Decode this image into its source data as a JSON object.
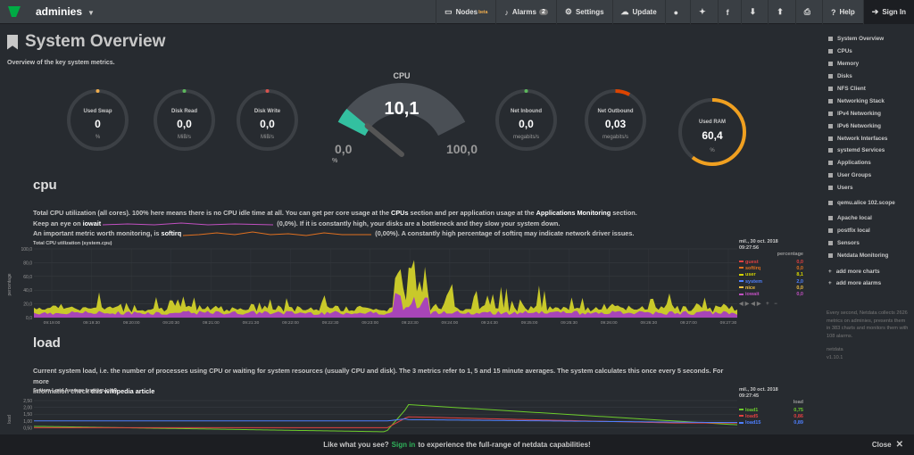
{
  "topbar": {
    "brand": "adminies",
    "nav": [
      {
        "icon": "monitor-icon",
        "label": "Nodes",
        "beta": "beta"
      },
      {
        "icon": "bell-icon",
        "label": "Alarms",
        "badge": "2"
      },
      {
        "icon": "gear-icon",
        "label": "Settings"
      },
      {
        "icon": "cloud-icon",
        "label": "Update"
      },
      {
        "icon": "github-icon",
        "label": ""
      },
      {
        "icon": "twitter-icon",
        "label": ""
      },
      {
        "icon": "facebook-icon",
        "label": ""
      },
      {
        "icon": "download-icon",
        "label": ""
      },
      {
        "icon": "upload-icon",
        "label": ""
      },
      {
        "icon": "print-icon",
        "label": ""
      },
      {
        "icon": "help-icon",
        "label": "Help"
      },
      {
        "icon": "signin-icon",
        "label": "Sign In"
      }
    ]
  },
  "page": {
    "title": "System Overview",
    "subtitle": "Overview of the key system metrics."
  },
  "gauges": [
    {
      "label": "Used Swap",
      "value": "0",
      "unit": "%",
      "fraction": 0,
      "color": "#f0ad4e"
    },
    {
      "label": "Disk Read",
      "value": "0,0",
      "unit": "MiB/s",
      "fraction": 0,
      "color": "#5cb85c"
    },
    {
      "label": "Disk Write",
      "value": "0,0",
      "unit": "MiB/s",
      "fraction": 0,
      "color": "#d9534f"
    },
    {
      "label": "Net Inbound",
      "value": "0,0",
      "unit": "megabits/s",
      "fraction": 0,
      "color": "#5cb85c"
    },
    {
      "label": "Net Outbound",
      "value": "0,03",
      "unit": "megabits/s",
      "fraction": 0.08,
      "color": "#dd4400"
    },
    {
      "label": "Used RAM",
      "value": "60,4",
      "unit": "%",
      "fraction": 0.604,
      "color": "#f0a020"
    }
  ],
  "cpu_gauge": {
    "label": "CPU",
    "value": "10,1",
    "min": "0,0",
    "max": "100,0",
    "unit": "%",
    "fraction": 0.101
  },
  "cpu": {
    "heading": "cpu",
    "p1a": "Total CPU utilization (all cores). 100% here means there is no CPU idle time at all. You can get per core usage at the ",
    "p1b": "CPUs",
    "p1c": " section and per application usage at the ",
    "p1d": "Applications Monitoring",
    "p1e": " section.",
    "p2a": "Keep an eye on ",
    "p2b": "iowait",
    "p2c": " (",
    "p2d": "0,0%). If it is constantly high, your disks are a bottleneck and they slow your system down.",
    "p3a": "An important metric worth monitoring, is ",
    "p3b": "softirq",
    "p3c": " (",
    "p3d": "0,00%). A constantly high percentage of softirq may indicate network driver issues.",
    "chart_title": "Total CPU utilization (system.cpu)",
    "legend_date": "mil., 30 oct. 2018",
    "legend_time": "09:27:56",
    "legend_unit": "percentage"
  },
  "load": {
    "heading": "load",
    "p1": "Current system load, i.e. the number of processes using CPU or waiting for system resources (usually CPU and disk). The 3 metrics refer to 1, 5 and 15 minute averages. The system calculates this once every 5 seconds. For more",
    "p2a": "information check ",
    "p2b": "this wikipedia article",
    "chart_title": "System Load Average (system.load)",
    "legend_date": "mil., 30 oct. 2018",
    "legend_time": "09:27:45",
    "legend_unit": "load"
  },
  "sidebar": {
    "items": [
      "System Overview",
      "CPUs",
      "Memory",
      "Disks",
      "NFS Client",
      "Networking Stack",
      "IPv4 Networking",
      "IPv6 Networking",
      "Network Interfaces",
      "systemd Services",
      "Applications",
      "User Groups",
      "Users",
      "qemu.alice 102.scope",
      "Apache local",
      "postfix local",
      "Sensors",
      "Netdata Monitoring"
    ],
    "add_charts": "add more charts",
    "add_alarms": "add more alarms",
    "foot1": "Every second, Netdata collects 2626 metrics on adminies, presents them in 383 charts and monitors them with 108 alarms.",
    "foot2": "netdata",
    "foot3": "v1.10.1"
  },
  "banner": {
    "pre": "Like what you see?",
    "link": "Sign in",
    "post": "to experience the full-range of netdata capabilities!",
    "close": "Close"
  },
  "chart_data": [
    {
      "type": "area",
      "title": "Total CPU utilization (system.cpu)",
      "ylabel": "percentage",
      "ylim": [
        0,
        100
      ],
      "yticks": [
        "100,0",
        "80,0",
        "60,0",
        "40,0",
        "20,0",
        "0,0"
      ],
      "x": [
        "09:19:00",
        "09:19:30",
        "09:20:00",
        "09:20:30",
        "09:21:00",
        "09:21:30",
        "09:22:00",
        "09:22:30",
        "09:23:00",
        "09:23:30",
        "09:24:00",
        "09:24:30",
        "09:25:00",
        "09:25:30",
        "09:26:00",
        "09:26:30",
        "09:27:00",
        "09:27:30"
      ],
      "series": [
        {
          "name": "guest",
          "value": "0,0",
          "color": "#e04040"
        },
        {
          "name": "softirq",
          "value": "0,0",
          "color": "#e07020"
        },
        {
          "name": "user",
          "value": "8,1",
          "color": "#d4d400"
        },
        {
          "name": "system",
          "value": "2,0",
          "color": "#4f80ff"
        },
        {
          "name": "nice",
          "value": "0,0",
          "color": "#f0c040"
        },
        {
          "name": "iowait",
          "value": "0,0",
          "color": "#c050c0"
        }
      ]
    },
    {
      "type": "line",
      "title": "System Load Average (system.load)",
      "ylabel": "load",
      "ylim": [
        0,
        2.5
      ],
      "yticks": [
        "2,50",
        "2,00",
        "1,50",
        "1,00",
        "0,50"
      ],
      "series": [
        {
          "name": "load1",
          "value": "0,75",
          "color": "#6ccc2c"
        },
        {
          "name": "load5",
          "value": "0,86",
          "color": "#e04040"
        },
        {
          "name": "load15",
          "value": "0,89",
          "color": "#4f80ff"
        }
      ]
    }
  ]
}
